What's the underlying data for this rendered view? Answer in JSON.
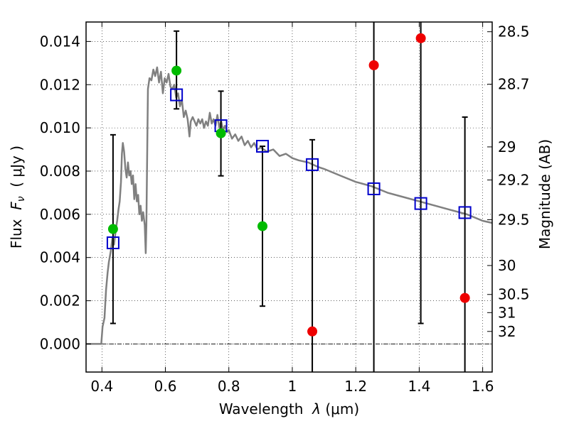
{
  "chart_data": {
    "type": "scatter",
    "xlabel": "Wavelength  λ (μm)",
    "ylabel": "Flux  F_ν  ( μJy )",
    "ylabel_parts": {
      "prefix": "Flux  ",
      "symbol": "F",
      "subscript": "ν",
      "suffix": "  ( μJy )"
    },
    "xlabel_parts": {
      "prefix": "Wavelength  ",
      "symbol": "λ",
      "suffix": " (μm)"
    },
    "y2label": "Magnitude (AB)",
    "xlim": [
      0.35,
      1.63
    ],
    "ylim": [
      -0.0013,
      0.0149
    ],
    "grid": true,
    "x_ticks": [
      0.4,
      0.6,
      0.8,
      1.0,
      1.2,
      1.4,
      1.6
    ],
    "x_tick_labels": [
      "0.4",
      "0.6",
      "0.8",
      "1",
      "1.2",
      "1.4",
      "1.6"
    ],
    "y_ticks": [
      0.0,
      0.002,
      0.004,
      0.006,
      0.008,
      0.01,
      0.012,
      0.014
    ],
    "y_tick_labels": [
      "0.000",
      "0.002",
      "0.004",
      "0.006",
      "0.008",
      "0.010",
      "0.012",
      "0.014"
    ],
    "y2_ticks": [
      {
        "label": "28.5",
        "flux": 0.01445
      },
      {
        "label": "28.7",
        "flux": 0.01202
      },
      {
        "label": "29",
        "flux": 0.00912
      },
      {
        "label": "29.2",
        "flux": 0.00759
      },
      {
        "label": "29.5",
        "flux": 0.00575
      },
      {
        "label": "30",
        "flux": 0.00363
      },
      {
        "label": "30.5",
        "flux": 0.00229
      },
      {
        "label": "31",
        "flux": 0.00145
      },
      {
        "label": "32",
        "flux": 0.00058
      }
    ],
    "sed_model": {
      "color": "#808080",
      "points": [
        [
          0.35,
          0.0
        ],
        [
          0.398,
          0.0
        ],
        [
          0.402,
          0.0008
        ],
        [
          0.408,
          0.0012
        ],
        [
          0.413,
          0.0025
        ],
        [
          0.418,
          0.0033
        ],
        [
          0.422,
          0.0038
        ],
        [
          0.428,
          0.0043
        ],
        [
          0.433,
          0.0049
        ],
        [
          0.438,
          0.0046
        ],
        [
          0.443,
          0.0052
        ],
        [
          0.448,
          0.0057
        ],
        [
          0.452,
          0.0062
        ],
        [
          0.456,
          0.0066
        ],
        [
          0.46,
          0.0075
        ],
        [
          0.463,
          0.0088
        ],
        [
          0.466,
          0.0093
        ],
        [
          0.47,
          0.0089
        ],
        [
          0.474,
          0.0081
        ],
        [
          0.478,
          0.0077
        ],
        [
          0.482,
          0.0084
        ],
        [
          0.486,
          0.0078
        ],
        [
          0.49,
          0.008
        ],
        [
          0.494,
          0.0074
        ],
        [
          0.498,
          0.0078
        ],
        [
          0.502,
          0.0067
        ],
        [
          0.506,
          0.0074
        ],
        [
          0.51,
          0.0066
        ],
        [
          0.514,
          0.0069
        ],
        [
          0.518,
          0.006
        ],
        [
          0.522,
          0.0064
        ],
        [
          0.526,
          0.0057
        ],
        [
          0.53,
          0.0061
        ],
        [
          0.535,
          0.0055
        ],
        [
          0.538,
          0.0042
        ],
        [
          0.54,
          0.0055
        ],
        [
          0.545,
          0.0118
        ],
        [
          0.55,
          0.0123
        ],
        [
          0.556,
          0.0122
        ],
        [
          0.562,
          0.0127
        ],
        [
          0.568,
          0.0124
        ],
        [
          0.574,
          0.0128
        ],
        [
          0.58,
          0.0121
        ],
        [
          0.586,
          0.0126
        ],
        [
          0.592,
          0.0116
        ],
        [
          0.598,
          0.0123
        ],
        [
          0.604,
          0.0121
        ],
        [
          0.61,
          0.0125
        ],
        [
          0.616,
          0.0119
        ],
        [
          0.622,
          0.0118
        ],
        [
          0.628,
          0.012
        ],
        [
          0.634,
          0.0114
        ],
        [
          0.64,
          0.0116
        ],
        [
          0.646,
          0.011
        ],
        [
          0.652,
          0.0113
        ],
        [
          0.658,
          0.0105
        ],
        [
          0.664,
          0.0108
        ],
        [
          0.67,
          0.0104
        ],
        [
          0.676,
          0.0096
        ],
        [
          0.68,
          0.0103
        ],
        [
          0.686,
          0.0105
        ],
        [
          0.692,
          0.0103
        ],
        [
          0.698,
          0.0101
        ],
        [
          0.704,
          0.0104
        ],
        [
          0.71,
          0.0102
        ],
        [
          0.716,
          0.0104
        ],
        [
          0.722,
          0.01
        ],
        [
          0.728,
          0.0103
        ],
        [
          0.734,
          0.0101
        ],
        [
          0.74,
          0.0107
        ],
        [
          0.746,
          0.0102
        ],
        [
          0.752,
          0.0104
        ],
        [
          0.758,
          0.0101
        ],
        [
          0.764,
          0.0106
        ],
        [
          0.77,
          0.01
        ],
        [
          0.776,
          0.0103
        ],
        [
          0.782,
          0.0099
        ],
        [
          0.788,
          0.0101
        ],
        [
          0.794,
          0.0098
        ],
        [
          0.8,
          0.0099
        ],
        [
          0.81,
          0.0095
        ],
        [
          0.82,
          0.0097
        ],
        [
          0.83,
          0.0094
        ],
        [
          0.84,
          0.0096
        ],
        [
          0.85,
          0.0092
        ],
        [
          0.86,
          0.0094
        ],
        [
          0.87,
          0.0091
        ],
        [
          0.88,
          0.0093
        ],
        [
          0.89,
          0.009
        ],
        [
          0.9,
          0.0091
        ],
        [
          0.92,
          0.0089
        ],
        [
          0.94,
          0.009
        ],
        [
          0.96,
          0.0087
        ],
        [
          0.98,
          0.0088
        ],
        [
          1.0,
          0.0086
        ],
        [
          1.02,
          0.0085
        ],
        [
          1.05,
          0.0084
        ],
        [
          1.08,
          0.0082
        ],
        [
          1.1,
          0.0081
        ],
        [
          1.15,
          0.0078
        ],
        [
          1.2,
          0.0075
        ],
        [
          1.25,
          0.0073
        ],
        [
          1.3,
          0.007
        ],
        [
          1.35,
          0.0068
        ],
        [
          1.4,
          0.0066
        ],
        [
          1.45,
          0.0064
        ],
        [
          1.5,
          0.0062
        ],
        [
          1.55,
          0.006
        ],
        [
          1.6,
          0.0057
        ],
        [
          1.63,
          0.0056
        ]
      ]
    },
    "model_photometry": {
      "marker": "open-square",
      "color": "#0000cc",
      "points": [
        {
          "x": 0.435,
          "y": 0.00468
        },
        {
          "x": 0.635,
          "y": 0.01153
        },
        {
          "x": 0.775,
          "y": 0.0101
        },
        {
          "x": 0.906,
          "y": 0.00915
        },
        {
          "x": 1.063,
          "y": 0.0083
        },
        {
          "x": 1.257,
          "y": 0.00718
        },
        {
          "x": 1.405,
          "y": 0.0065
        },
        {
          "x": 1.544,
          "y": 0.00608
        }
      ]
    },
    "observed_photometry": {
      "marker": "filled-circle",
      "points": [
        {
          "x": 0.435,
          "y": 0.00532,
          "err_lo": 0.00095,
          "err_hi": 0.00968,
          "color": "#00bb00"
        },
        {
          "x": 0.635,
          "y": 0.01265,
          "err_lo": 0.01088,
          "err_hi": 0.01448,
          "color": "#00bb00"
        },
        {
          "x": 0.775,
          "y": 0.00975,
          "err_lo": 0.00778,
          "err_hi": 0.0117,
          "color": "#00bb00"
        },
        {
          "x": 0.906,
          "y": 0.00545,
          "err_lo": 0.00175,
          "err_hi": 0.00915,
          "color": "#00bb00"
        },
        {
          "x": 1.063,
          "y": 0.00058,
          "err_lo": -0.0013,
          "err_hi": 0.00945,
          "color": "#ee0000"
        },
        {
          "x": 1.257,
          "y": 0.0129,
          "err_lo": -0.0013,
          "err_hi": 0.0149,
          "color": "#ee0000"
        },
        {
          "x": 1.405,
          "y": 0.01415,
          "err_lo": 0.00095,
          "err_hi": 0.0149,
          "color": "#ee0000"
        },
        {
          "x": 1.544,
          "y": 0.00213,
          "err_lo": -0.0013,
          "err_hi": 0.0105,
          "color": "#ee0000"
        }
      ]
    }
  }
}
